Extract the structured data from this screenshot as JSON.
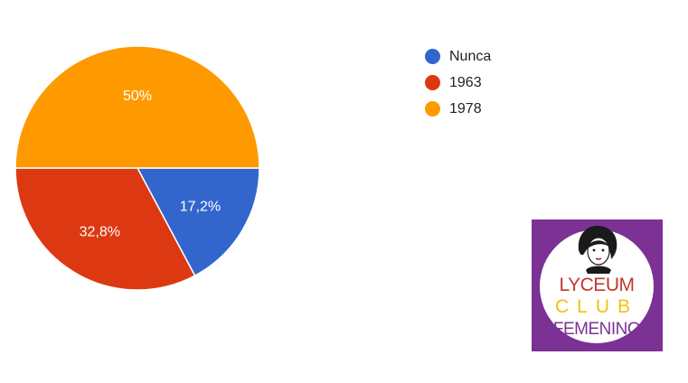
{
  "chart_data": {
    "type": "pie",
    "categories": [
      "Nunca",
      "1963",
      "1978"
    ],
    "values": [
      17.2,
      32.8,
      50
    ],
    "data_labels": [
      "17,2%",
      "32,8%",
      "50%"
    ],
    "colors": [
      "#3366cc",
      "#dc3912",
      "#ff9900"
    ],
    "legend_position": "right"
  },
  "logo": {
    "lines": [
      "LYCEUM",
      "CLUB",
      "FEMENINO"
    ],
    "background": "#7b3294"
  }
}
